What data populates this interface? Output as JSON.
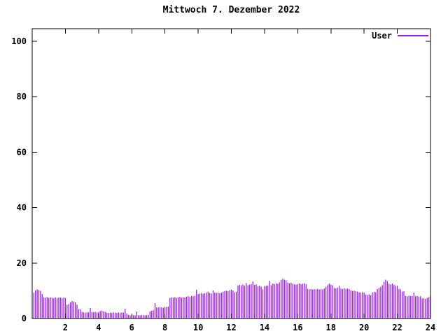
{
  "window": {
    "background": "#ffffff",
    "foreground": "#000000"
  },
  "chart_data": {
    "type": "bar",
    "style": "impulses",
    "title": "Mittwoch 7. Dezember 2022",
    "xlabel": "",
    "ylabel": "",
    "xlim": [
      0,
      24
    ],
    "ylim": [
      0,
      104.5
    ],
    "xticks": [
      2,
      4,
      6,
      8,
      10,
      12,
      14,
      16,
      18,
      20,
      22,
      24
    ],
    "yticks": [
      0,
      20,
      40,
      60,
      80,
      100
    ],
    "grid": false,
    "legend_position": "top-right-inside",
    "axis_color": "#000000",
    "x_unit": "hour",
    "x_start": 0.1,
    "x_step": 0.1,
    "series": [
      {
        "name": "User",
        "color": "#a020f0",
        "values": [
          9.3,
          10.2,
          10.5,
          10.3,
          10.0,
          8.8,
          7.6,
          7.5,
          7.7,
          7.4,
          7.6,
          7.5,
          7.3,
          7.6,
          7.4,
          7.5,
          7.6,
          7.3,
          7.5,
          7.4,
          5.0,
          5.2,
          5.8,
          6.3,
          6.1,
          5.8,
          5.0,
          3.4,
          3.3,
          2.4,
          2.2,
          2.1,
          2.3,
          2.2,
          3.8,
          2.3,
          2.2,
          2.4,
          2.2,
          2.3,
          2.7,
          2.8,
          2.6,
          2.4,
          2.1,
          2.0,
          2.1,
          2.0,
          2.2,
          2.1,
          2.0,
          2.1,
          2.0,
          2.2,
          2.1,
          3.5,
          1.8,
          1.3,
          1.2,
          1.1,
          1.2,
          1.1,
          2.5,
          1.2,
          1.1,
          1.3,
          1.2,
          1.1,
          1.2,
          1.3,
          2.6,
          2.8,
          3.0,
          5.5,
          4.0,
          3.9,
          4.1,
          4.0,
          3.9,
          4.1,
          4.2,
          4.3,
          7.4,
          7.6,
          7.5,
          7.7,
          7.4,
          7.6,
          7.8,
          7.5,
          7.7,
          7.6,
          7.9,
          8.0,
          7.8,
          8.1,
          8.0,
          8.2,
          10.4,
          8.8,
          9.0,
          9.2,
          8.9,
          9.1,
          9.3,
          9.7,
          9.2,
          9.0,
          10.1,
          9.3,
          9.2,
          9.4,
          9.1,
          9.3,
          9.7,
          9.9,
          10.0,
          9.8,
          10.2,
          10.4,
          10.1,
          9.4,
          9.6,
          11.9,
          12.1,
          12.0,
          12.2,
          11.8,
          12.8,
          12.0,
          12.2,
          12.4,
          13.3,
          12.1,
          12.3,
          11.6,
          11.8,
          11.5,
          10.5,
          11.7,
          11.8,
          11.9,
          13.6,
          12.0,
          12.6,
          12.4,
          12.7,
          12.5,
          13.0,
          13.9,
          14.3,
          14.0,
          13.8,
          13.0,
          12.7,
          12.9,
          12.6,
          12.3,
          12.2,
          12.4,
          12.6,
          12.4,
          12.5,
          12.7,
          12.3,
          10.7,
          10.5,
          10.6,
          10.4,
          10.6,
          10.5,
          10.7,
          10.4,
          10.6,
          10.5,
          10.8,
          11.5,
          12.0,
          12.6,
          12.2,
          12.0,
          11.0,
          10.9,
          11.1,
          11.8,
          10.8,
          10.6,
          10.9,
          10.7,
          10.8,
          10.6,
          10.2,
          9.9,
          10.0,
          9.8,
          9.6,
          9.4,
          9.3,
          9.5,
          9.3,
          8.6,
          8.5,
          8.7,
          8.4,
          9.4,
          9.6,
          9.5,
          10.6,
          11.0,
          11.4,
          12.0,
          13.2,
          14.0,
          13.5,
          12.5,
          12.3,
          12.6,
          12.1,
          11.8,
          11.9,
          10.7,
          10.5,
          9.7,
          9.8,
          8.1,
          8.0,
          8.2,
          8.0,
          8.1,
          9.3,
          8.0,
          8.1,
          7.9,
          8.0,
          7.2,
          7.3,
          7.1,
          7.4,
          7.7,
          8.0
        ]
      }
    ]
  }
}
